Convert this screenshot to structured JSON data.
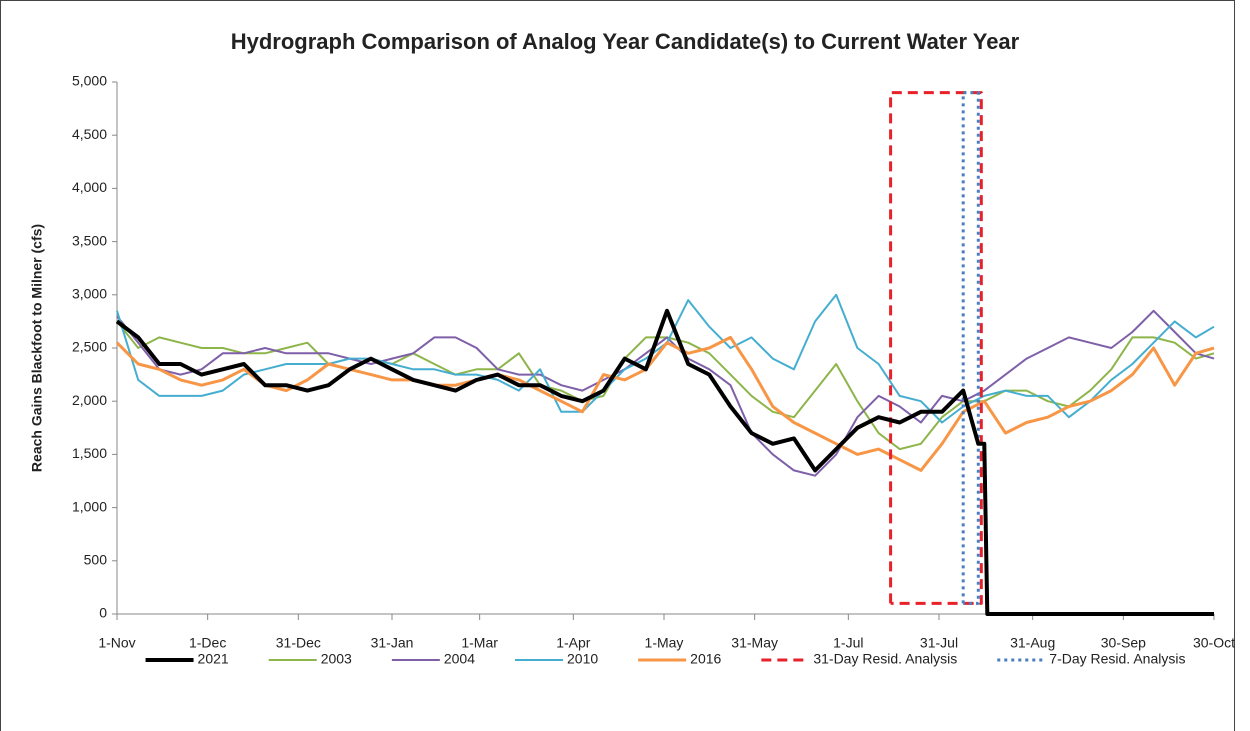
{
  "chart_data": {
    "type": "line",
    "title": "Hydrograph Comparison of Analog Year Candidate(s) to Current Water Year",
    "y_label": "Reach Gains Blackfoot to Milner (cfs)",
    "xlim": [
      0,
      363
    ],
    "ylim": [
      0,
      5000
    ],
    "xticks": [
      {
        "value": 0,
        "label": "1-Nov"
      },
      {
        "value": 30,
        "label": "1-Dec"
      },
      {
        "value": 60,
        "label": "31-Dec"
      },
      {
        "value": 91,
        "label": "31-Jan"
      },
      {
        "value": 120,
        "label": "1-Mar"
      },
      {
        "value": 151,
        "label": "1-Apr"
      },
      {
        "value": 181,
        "label": "1-May"
      },
      {
        "value": 211,
        "label": "31-May"
      },
      {
        "value": 242,
        "label": "1-Jul"
      },
      {
        "value": 272,
        "label": "31-Jul"
      },
      {
        "value": 303,
        "label": "31-Aug"
      },
      {
        "value": 333,
        "label": "30-Sep"
      },
      {
        "value": 363,
        "label": "30-Oct"
      }
    ],
    "yticks": [
      0,
      500,
      {
        "value": 1000,
        "label": "1,000"
      },
      {
        "value": 1500,
        "label": "1,500"
      },
      {
        "value": 2000,
        "label": "2,000"
      },
      {
        "value": 2500,
        "label": "2,500"
      },
      {
        "value": 3000,
        "label": "3,000"
      },
      {
        "value": 3500,
        "label": "3,500"
      },
      {
        "value": 4000,
        "label": "4,000"
      },
      {
        "value": 4500,
        "label": "4,500"
      },
      {
        "value": 5000,
        "label": "5,000"
      }
    ],
    "grid": false,
    "legend": "bottom",
    "x": [
      0,
      7,
      14,
      21,
      28,
      35,
      42,
      49,
      56,
      63,
      70,
      77,
      84,
      91,
      98,
      105,
      112,
      119,
      126,
      133,
      140,
      147,
      154,
      161,
      168,
      175,
      182,
      189,
      196,
      203,
      210,
      217,
      224,
      231,
      238,
      245,
      252,
      259,
      266,
      273,
      280,
      287,
      294,
      301,
      308,
      315,
      322,
      329,
      336,
      343,
      350,
      357,
      363
    ],
    "series": [
      {
        "name": "2021",
        "color": "#000000",
        "width": 4,
        "dash": "solid",
        "x": [
          0,
          7,
          14,
          21,
          28,
          35,
          42,
          49,
          56,
          63,
          70,
          77,
          84,
          91,
          98,
          105,
          112,
          119,
          126,
          133,
          140,
          147,
          154,
          161,
          168,
          175,
          182,
          189,
          196,
          203,
          210,
          217,
          224,
          231,
          238,
          245,
          252,
          259,
          266,
          273,
          280,
          285,
          287,
          288,
          363
        ],
        "values": [
          2750,
          2600,
          2350,
          2350,
          2250,
          2300,
          2350,
          2150,
          2150,
          2100,
          2150,
          2300,
          2400,
          2300,
          2200,
          2150,
          2100,
          2200,
          2250,
          2150,
          2150,
          2050,
          2000,
          2100,
          2400,
          2300,
          2850,
          2350,
          2250,
          1950,
          1700,
          1600,
          1650,
          1350,
          1550,
          1750,
          1850,
          1800,
          1900,
          1900,
          2100,
          1600,
          1600,
          0,
          0
        ]
      },
      {
        "name": "2003",
        "color": "#8db54a",
        "width": 2,
        "dash": "solid",
        "values": [
          2750,
          2500,
          2600,
          2550,
          2500,
          2500,
          2450,
          2450,
          2500,
          2550,
          2350,
          2300,
          2400,
          2350,
          2450,
          2350,
          2250,
          2300,
          2300,
          2450,
          2150,
          2100,
          2000,
          2050,
          2400,
          2600,
          2600,
          2550,
          2450,
          2250,
          2050,
          1900,
          1850,
          2100,
          2350,
          2000,
          1700,
          1550,
          1600,
          1850,
          2000,
          2000,
          2100,
          2100,
          2000,
          1950,
          2100,
          2300,
          2600,
          2600,
          2550,
          2400,
          2450
        ]
      },
      {
        "name": "2004",
        "color": "#7e5fa8",
        "width": 2,
        "dash": "solid",
        "values": [
          2800,
          2550,
          2300,
          2250,
          2300,
          2450,
          2450,
          2500,
          2450,
          2450,
          2450,
          2400,
          2350,
          2400,
          2450,
          2600,
          2600,
          2500,
          2300,
          2250,
          2250,
          2150,
          2100,
          2200,
          2300,
          2450,
          2600,
          2400,
          2300,
          2150,
          1700,
          1500,
          1350,
          1300,
          1500,
          1850,
          2050,
          1950,
          1800,
          2050,
          2000,
          2100,
          2250,
          2400,
          2500,
          2600,
          2550,
          2500,
          2650,
          2850,
          2650,
          2450,
          2400
        ]
      },
      {
        "name": "2010",
        "color": "#45aed0",
        "width": 2,
        "dash": "solid",
        "values": [
          2850,
          2200,
          2050,
          2050,
          2050,
          2100,
          2250,
          2300,
          2350,
          2350,
          2350,
          2400,
          2400,
          2350,
          2300,
          2300,
          2250,
          2250,
          2200,
          2100,
          2300,
          1900,
          1900,
          2100,
          2300,
          2400,
          2550,
          2950,
          2700,
          2500,
          2600,
          2400,
          2300,
          2750,
          3000,
          2500,
          2350,
          2050,
          2000,
          1800,
          1950,
          2050,
          2100,
          2050,
          2050,
          1850,
          2000,
          2200,
          2350,
          2550,
          2750,
          2600,
          2700
        ]
      },
      {
        "name": "2016",
        "color": "#f79646",
        "width": 3,
        "dash": "solid",
        "values": [
          2550,
          2350,
          2300,
          2200,
          2150,
          2200,
          2300,
          2150,
          2100,
          2200,
          2350,
          2300,
          2250,
          2200,
          2200,
          2150,
          2150,
          2200,
          2250,
          2200,
          2100,
          2000,
          1900,
          2250,
          2200,
          2300,
          2550,
          2450,
          2500,
          2600,
          2300,
          1950,
          1800,
          1700,
          1600,
          1500,
          1550,
          1450,
          1350,
          1600,
          1900,
          2000,
          1700,
          1800,
          1850,
          1950,
          2000,
          2100,
          2250,
          2500,
          2150,
          2450,
          2500
        ]
      },
      {
        "name": "31-Day Resid. Analysis",
        "color": "#e8202a",
        "width": 3,
        "dash": "dashed",
        "x": [
          256,
          256,
          286,
          286,
          256
        ],
        "values": [
          100,
          4900,
          4900,
          100,
          100
        ]
      },
      {
        "name": "7-Day Resid. Analysis",
        "color": "#4a7ec2",
        "width": 3,
        "dash": "dotted",
        "x": [
          280,
          280,
          285,
          285,
          280
        ],
        "values": [
          100,
          4900,
          4900,
          100,
          100
        ]
      }
    ]
  }
}
